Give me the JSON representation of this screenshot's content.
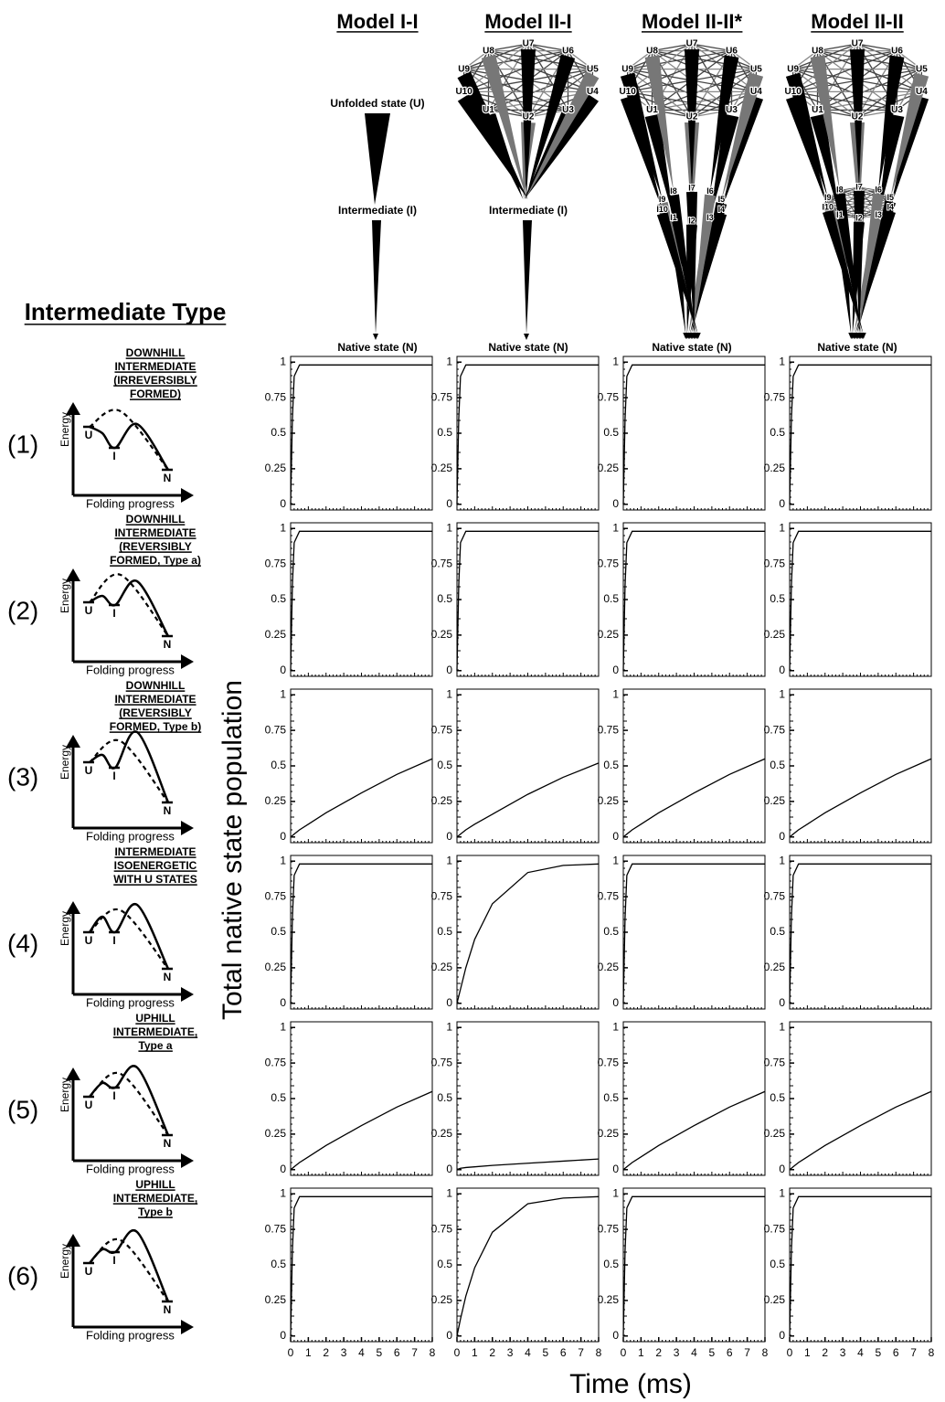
{
  "figure": {
    "section_title": "Intermediate Type",
    "y_axis_label": "Total native state population",
    "x_axis_label": "Time (ms)",
    "models": [
      {
        "title": "Model I-I",
        "top_label": "Unfolded state (U)",
        "mid_label": "Intermediate (I)",
        "bottom_label": "Native state (N)"
      },
      {
        "title": "Model II-I",
        "u_nodes": [
          "U1",
          "U2",
          "U3",
          "U4",
          "U5",
          "U6",
          "U7",
          "U8",
          "U9",
          "U10"
        ],
        "mid_label": "Intermediate (I)",
        "bottom_label": "Native state (N)"
      },
      {
        "title": "Model II-II*",
        "u_nodes": [
          "U1",
          "U2",
          "U3",
          "U4",
          "U5",
          "U6",
          "U7",
          "U8",
          "U9",
          "U10"
        ],
        "i_nodes": [
          "I1",
          "I2",
          "I3",
          "I4",
          "I5",
          "I6",
          "I7",
          "I8",
          "I9",
          "I10"
        ],
        "bottom_label": "Native state (N)"
      },
      {
        "title": "Model II-II",
        "u_nodes": [
          "U1",
          "U2",
          "U3",
          "U4",
          "U5",
          "U6",
          "U7",
          "U8",
          "U9",
          "U10"
        ],
        "i_nodes": [
          "I1",
          "I2",
          "I3",
          "I4",
          "I5",
          "I6",
          "I7",
          "I8",
          "I9",
          "I10"
        ],
        "bottom_label": "Native state (N)"
      }
    ],
    "energy_diagram": {
      "y_label": "Energy",
      "x_label": "Folding progress",
      "states": [
        "U",
        "I",
        "N"
      ]
    },
    "rows": [
      {
        "label": "(1)",
        "title_lines": [
          "DOWNHILL",
          "INTERMEDIATE",
          "(IRREVERSIBLY",
          "FORMED)"
        ]
      },
      {
        "label": "(2)",
        "title_lines": [
          "DOWNHILL",
          "INTERMEDIATE",
          "(REVERSIBLY",
          "FORMED, Type a)"
        ]
      },
      {
        "label": "(3)",
        "title_lines": [
          "DOWNHILL",
          "INTERMEDIATE",
          "(REVERSIBLY",
          "FORMED, Type b)"
        ]
      },
      {
        "label": "(4)",
        "title_lines": [
          "INTERMEDIATE",
          "ISOENERGETIC",
          "WITH U STATES"
        ]
      },
      {
        "label": "(5)",
        "title_lines": [
          "UPHILL",
          "INTERMEDIATE,",
          "Type a"
        ]
      },
      {
        "label": "(6)",
        "title_lines": [
          "UPHILL",
          "INTERMEDIATE,",
          "Type b"
        ]
      }
    ]
  },
  "chart_data": [
    {
      "type": "line",
      "x": [
        0,
        0.1,
        0.2,
        0.5,
        1,
        2,
        4,
        6,
        8
      ],
      "values": [
        0,
        0.6,
        0.9,
        0.98,
        0.98,
        0.98,
        0.98,
        0.98,
        0.98
      ],
      "color": "#000000",
      "xlim": [
        0,
        8
      ],
      "ylim": [
        -0.04,
        1.04
      ],
      "yticks": [
        0,
        0.25,
        0.5,
        0.75,
        1
      ]
    },
    {
      "type": "line",
      "x": [
        0,
        0.1,
        0.2,
        0.5,
        1,
        2,
        4,
        6,
        8
      ],
      "values": [
        0,
        0.6,
        0.9,
        0.98,
        0.98,
        0.98,
        0.98,
        0.98,
        0.98
      ],
      "color": "#000000",
      "xlim": [
        0,
        8
      ],
      "ylim": [
        -0.04,
        1.04
      ],
      "yticks": [
        0,
        0.25,
        0.5,
        0.75,
        1
      ]
    },
    {
      "type": "line",
      "x": [
        0,
        0.1,
        0.2,
        0.5,
        1,
        2,
        4,
        6,
        8
      ],
      "values": [
        0,
        0.6,
        0.9,
        0.98,
        0.98,
        0.98,
        0.98,
        0.98,
        0.98
      ],
      "color": "#000000",
      "xlim": [
        0,
        8
      ],
      "ylim": [
        -0.04,
        1.04
      ],
      "yticks": [
        0,
        0.25,
        0.5,
        0.75,
        1
      ]
    },
    {
      "type": "line",
      "x": [
        0,
        0.1,
        0.2,
        0.5,
        1,
        2,
        4,
        6,
        8
      ],
      "values": [
        0,
        0.6,
        0.9,
        0.98,
        0.98,
        0.98,
        0.98,
        0.98,
        0.98
      ],
      "color": "#000000",
      "xlim": [
        0,
        8
      ],
      "ylim": [
        -0.04,
        1.04
      ],
      "yticks": [
        0,
        0.25,
        0.5,
        0.75,
        1
      ]
    },
    {
      "type": "line",
      "x": [
        0,
        0.1,
        0.2,
        0.5,
        1,
        2,
        4,
        6,
        8
      ],
      "values": [
        0,
        0.6,
        0.9,
        0.98,
        0.98,
        0.98,
        0.98,
        0.98,
        0.98
      ],
      "color": "#000000",
      "xlim": [
        0,
        8
      ],
      "ylim": [
        -0.04,
        1.04
      ],
      "yticks": [
        0,
        0.25,
        0.5,
        0.75,
        1
      ]
    },
    {
      "type": "line",
      "x": [
        0,
        0.1,
        0.2,
        0.5,
        1,
        2,
        4,
        6,
        8
      ],
      "values": [
        0,
        0.6,
        0.9,
        0.98,
        0.98,
        0.98,
        0.98,
        0.98,
        0.98
      ],
      "color": "#000000",
      "xlim": [
        0,
        8
      ],
      "ylim": [
        -0.04,
        1.04
      ],
      "yticks": [
        0,
        0.25,
        0.5,
        0.75,
        1
      ]
    },
    {
      "type": "line",
      "x": [
        0,
        0.1,
        0.2,
        0.5,
        1,
        2,
        4,
        6,
        8
      ],
      "values": [
        0,
        0.6,
        0.9,
        0.98,
        0.98,
        0.98,
        0.98,
        0.98,
        0.98
      ],
      "color": "#000000",
      "xlim": [
        0,
        8
      ],
      "ylim": [
        -0.04,
        1.04
      ],
      "yticks": [
        0,
        0.25,
        0.5,
        0.75,
        1
      ]
    },
    {
      "type": "line",
      "x": [
        0,
        0.1,
        0.2,
        0.5,
        1,
        2,
        4,
        6,
        8
      ],
      "values": [
        0,
        0.6,
        0.9,
        0.98,
        0.98,
        0.98,
        0.98,
        0.98,
        0.98
      ],
      "color": "#000000",
      "xlim": [
        0,
        8
      ],
      "ylim": [
        -0.04,
        1.04
      ],
      "yticks": [
        0,
        0.25,
        0.5,
        0.75,
        1
      ]
    },
    {
      "type": "line",
      "x": [
        0,
        0.1,
        0.2,
        0.5,
        1,
        2,
        4,
        6,
        8
      ],
      "values": [
        0,
        0.01,
        0.02,
        0.05,
        0.09,
        0.17,
        0.31,
        0.44,
        0.55
      ],
      "color": "#000000",
      "xlim": [
        0,
        8
      ],
      "ylim": [
        -0.04,
        1.04
      ],
      "yticks": [
        0,
        0.25,
        0.5,
        0.75,
        1
      ]
    },
    {
      "type": "line",
      "x": [
        0,
        0.1,
        0.2,
        0.5,
        1,
        2,
        4,
        6,
        8
      ],
      "values": [
        0,
        0.01,
        0.02,
        0.05,
        0.09,
        0.16,
        0.3,
        0.42,
        0.52
      ],
      "color": "#000000",
      "xlim": [
        0,
        8
      ],
      "ylim": [
        -0.04,
        1.04
      ],
      "yticks": [
        0,
        0.25,
        0.5,
        0.75,
        1
      ]
    },
    {
      "type": "line",
      "x": [
        0,
        0.1,
        0.2,
        0.5,
        1,
        2,
        4,
        6,
        8
      ],
      "values": [
        0,
        0.01,
        0.02,
        0.05,
        0.09,
        0.17,
        0.31,
        0.44,
        0.55
      ],
      "color": "#000000",
      "xlim": [
        0,
        8
      ],
      "ylim": [
        -0.04,
        1.04
      ],
      "yticks": [
        0,
        0.25,
        0.5,
        0.75,
        1
      ]
    },
    {
      "type": "line",
      "x": [
        0,
        0.1,
        0.2,
        0.5,
        1,
        2,
        4,
        6,
        8
      ],
      "values": [
        0,
        0.01,
        0.02,
        0.05,
        0.09,
        0.17,
        0.31,
        0.44,
        0.55
      ],
      "color": "#000000",
      "xlim": [
        0,
        8
      ],
      "ylim": [
        -0.04,
        1.04
      ],
      "yticks": [
        0,
        0.25,
        0.5,
        0.75,
        1
      ]
    },
    {
      "type": "line",
      "x": [
        0,
        0.1,
        0.2,
        0.5,
        1,
        2,
        4,
        6,
        8
      ],
      "values": [
        0,
        0.6,
        0.9,
        0.98,
        0.98,
        0.98,
        0.98,
        0.98,
        0.98
      ],
      "color": "#000000",
      "xlim": [
        0,
        8
      ],
      "ylim": [
        -0.04,
        1.04
      ],
      "yticks": [
        0,
        0.25,
        0.5,
        0.75,
        1
      ]
    },
    {
      "type": "line",
      "x": [
        0,
        0.1,
        0.2,
        0.5,
        1,
        2,
        4,
        6,
        8
      ],
      "values": [
        0,
        0.05,
        0.1,
        0.25,
        0.45,
        0.7,
        0.92,
        0.97,
        0.98
      ],
      "color": "#000000",
      "xlim": [
        0,
        8
      ],
      "ylim": [
        -0.04,
        1.04
      ],
      "yticks": [
        0,
        0.25,
        0.5,
        0.75,
        1
      ]
    },
    {
      "type": "line",
      "x": [
        0,
        0.1,
        0.2,
        0.5,
        1,
        2,
        4,
        6,
        8
      ],
      "values": [
        0,
        0.6,
        0.9,
        0.98,
        0.98,
        0.98,
        0.98,
        0.98,
        0.98
      ],
      "color": "#000000",
      "xlim": [
        0,
        8
      ],
      "ylim": [
        -0.04,
        1.04
      ],
      "yticks": [
        0,
        0.25,
        0.5,
        0.75,
        1
      ]
    },
    {
      "type": "line",
      "x": [
        0,
        0.1,
        0.2,
        0.5,
        1,
        2,
        4,
        6,
        8
      ],
      "values": [
        0,
        0.6,
        0.9,
        0.98,
        0.98,
        0.98,
        0.98,
        0.98,
        0.98
      ],
      "color": "#000000",
      "xlim": [
        0,
        8
      ],
      "ylim": [
        -0.04,
        1.04
      ],
      "yticks": [
        0,
        0.25,
        0.5,
        0.75,
        1
      ]
    },
    {
      "type": "line",
      "x": [
        0,
        0.1,
        0.2,
        0.5,
        1,
        2,
        4,
        6,
        8
      ],
      "values": [
        0,
        0.01,
        0.02,
        0.05,
        0.09,
        0.17,
        0.31,
        0.44,
        0.55
      ],
      "color": "#000000",
      "xlim": [
        0,
        8
      ],
      "ylim": [
        -0.04,
        1.04
      ],
      "yticks": [
        0,
        0.25,
        0.5,
        0.75,
        1
      ]
    },
    {
      "type": "line",
      "x": [
        0,
        0.1,
        0.2,
        0.5,
        1,
        2,
        4,
        6,
        8
      ],
      "values": [
        0,
        0.005,
        0.01,
        0.015,
        0.02,
        0.03,
        0.045,
        0.06,
        0.075
      ],
      "color": "#000000",
      "xlim": [
        0,
        8
      ],
      "ylim": [
        -0.04,
        1.04
      ],
      "yticks": [
        0,
        0.25,
        0.5,
        0.75,
        1
      ]
    },
    {
      "type": "line",
      "x": [
        0,
        0.1,
        0.2,
        0.5,
        1,
        2,
        4,
        6,
        8
      ],
      "values": [
        0,
        0.01,
        0.02,
        0.05,
        0.09,
        0.17,
        0.31,
        0.44,
        0.55
      ],
      "color": "#000000",
      "xlim": [
        0,
        8
      ],
      "ylim": [
        -0.04,
        1.04
      ],
      "yticks": [
        0,
        0.25,
        0.5,
        0.75,
        1
      ]
    },
    {
      "type": "line",
      "x": [
        0,
        0.1,
        0.2,
        0.5,
        1,
        2,
        4,
        6,
        8
      ],
      "values": [
        0,
        0.01,
        0.02,
        0.05,
        0.09,
        0.17,
        0.31,
        0.44,
        0.55
      ],
      "color": "#000000",
      "xlim": [
        0,
        8
      ],
      "ylim": [
        -0.04,
        1.04
      ],
      "yticks": [
        0,
        0.25,
        0.5,
        0.75,
        1
      ]
    },
    {
      "type": "line",
      "x": [
        0,
        0.1,
        0.2,
        0.5,
        1,
        2,
        4,
        6,
        8
      ],
      "values": [
        0,
        0.6,
        0.9,
        0.98,
        0.98,
        0.98,
        0.98,
        0.98,
        0.98
      ],
      "color": "#000000",
      "xlim": [
        0,
        8
      ],
      "ylim": [
        -0.04,
        1.04
      ],
      "yticks": [
        0,
        0.25,
        0.5,
        0.75,
        1
      ],
      "xticks": [
        0,
        1,
        2,
        3,
        4,
        5,
        6,
        7,
        8
      ]
    },
    {
      "type": "line",
      "x": [
        0,
        0.1,
        0.2,
        0.5,
        1,
        2,
        4,
        6,
        8
      ],
      "values": [
        0,
        0.06,
        0.12,
        0.28,
        0.48,
        0.73,
        0.93,
        0.97,
        0.98
      ],
      "color": "#000000",
      "xlim": [
        0,
        8
      ],
      "ylim": [
        -0.04,
        1.04
      ],
      "yticks": [
        0,
        0.25,
        0.5,
        0.75,
        1
      ],
      "xticks": [
        0,
        1,
        2,
        3,
        4,
        5,
        6,
        7,
        8
      ]
    },
    {
      "type": "line",
      "x": [
        0,
        0.1,
        0.2,
        0.5,
        1,
        2,
        4,
        6,
        8
      ],
      "values": [
        0,
        0.6,
        0.9,
        0.98,
        0.98,
        0.98,
        0.98,
        0.98,
        0.98
      ],
      "color": "#000000",
      "xlim": [
        0,
        8
      ],
      "ylim": [
        -0.04,
        1.04
      ],
      "yticks": [
        0,
        0.25,
        0.5,
        0.75,
        1
      ],
      "xticks": [
        0,
        1,
        2,
        3,
        4,
        5,
        6,
        7,
        8
      ]
    },
    {
      "type": "line",
      "x": [
        0,
        0.1,
        0.2,
        0.5,
        1,
        2,
        4,
        6,
        8
      ],
      "values": [
        0,
        0.6,
        0.9,
        0.98,
        0.98,
        0.98,
        0.98,
        0.98,
        0.98
      ],
      "color": "#000000",
      "xlim": [
        0,
        8
      ],
      "ylim": [
        -0.04,
        1.04
      ],
      "yticks": [
        0,
        0.25,
        0.5,
        0.75,
        1
      ],
      "xticks": [
        0,
        1,
        2,
        3,
        4,
        5,
        6,
        7,
        8
      ]
    }
  ]
}
